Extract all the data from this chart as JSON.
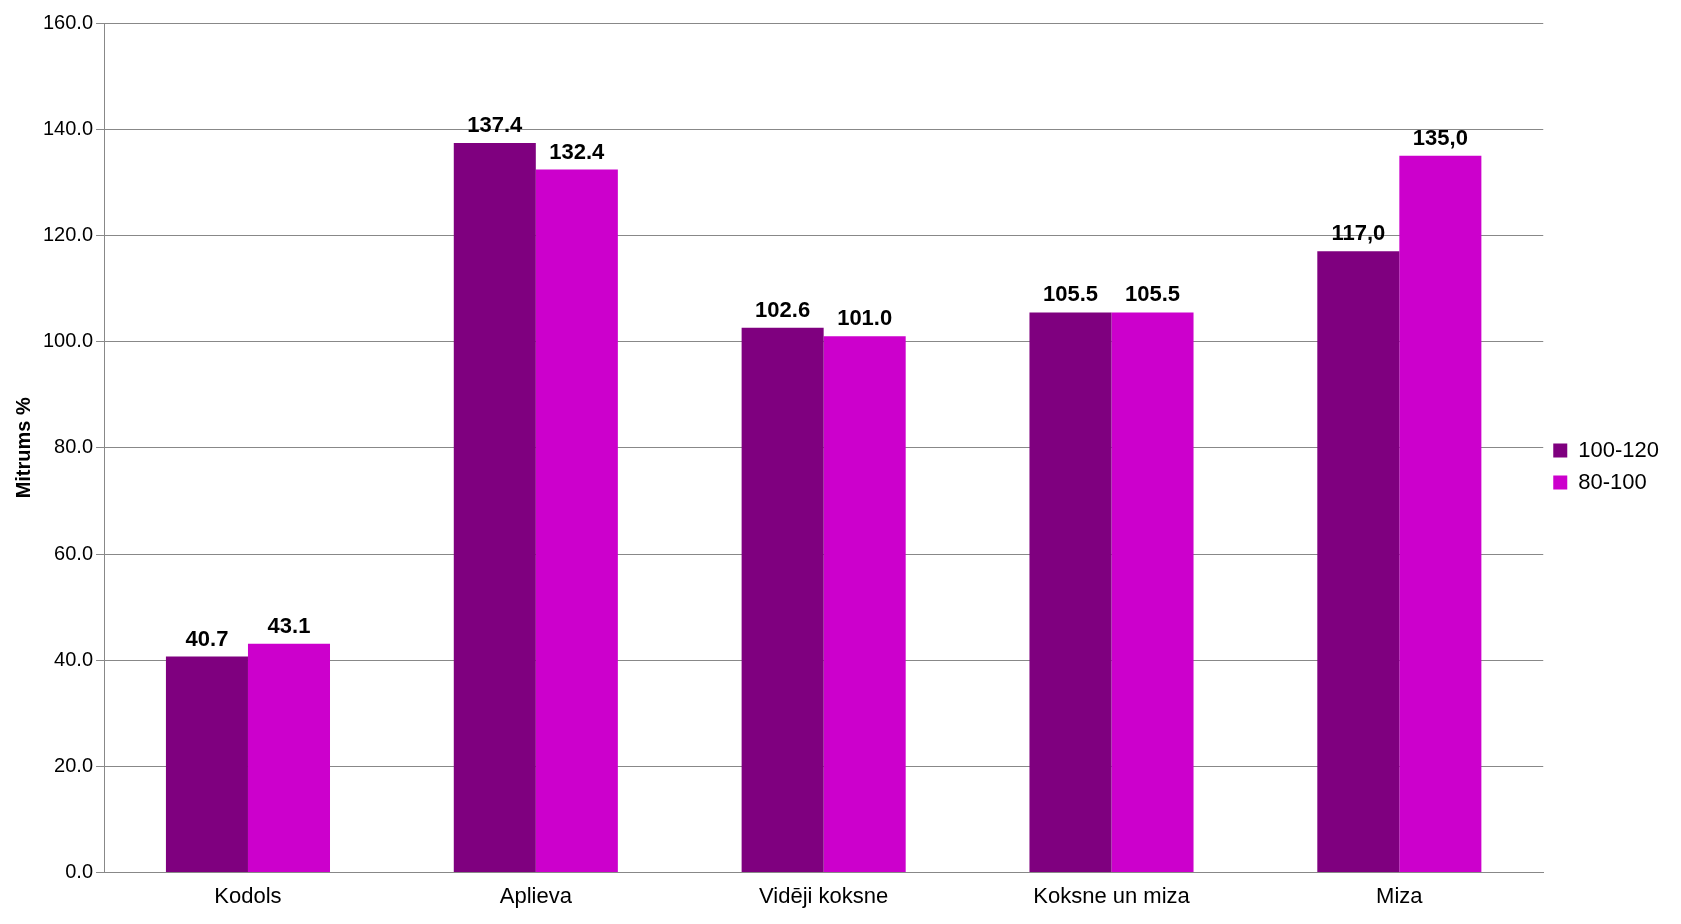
{
  "chart_data": {
    "type": "bar",
    "ylabel": "Mitrums %",
    "categories": [
      "Kodols",
      "Aplieva",
      "Vidēji koksne",
      "Koksne un miza",
      "Miza"
    ],
    "series": [
      {
        "name": "100-120",
        "color": "#7f007f",
        "values": [
          40.7,
          137.4,
          102.6,
          105.5,
          117.0
        ],
        "value_labels": [
          "40.7",
          "137.4",
          "102.6",
          "105.5",
          "117,0"
        ]
      },
      {
        "name": "80-100",
        "color": "#cc00cc",
        "values": [
          43.1,
          132.4,
          101.0,
          105.5,
          135.0
        ],
        "value_labels": [
          "43.1",
          "132.4",
          "101.0",
          "105.5",
          "135,0"
        ]
      }
    ],
    "ylim": [
      0,
      160
    ],
    "yticks": [
      {
        "value": 0,
        "label": "0.0"
      },
      {
        "value": 20,
        "label": "20.0"
      },
      {
        "value": 40,
        "label": "40.0"
      },
      {
        "value": 60,
        "label": "60.0"
      },
      {
        "value": 80,
        "label": "80.0"
      },
      {
        "value": 100,
        "label": "100.0"
      },
      {
        "value": 120,
        "label": "120.0"
      },
      {
        "value": 140,
        "label": "140.0"
      },
      {
        "value": 160,
        "label": "160.0"
      }
    ],
    "grid": "y",
    "legend": "right"
  }
}
